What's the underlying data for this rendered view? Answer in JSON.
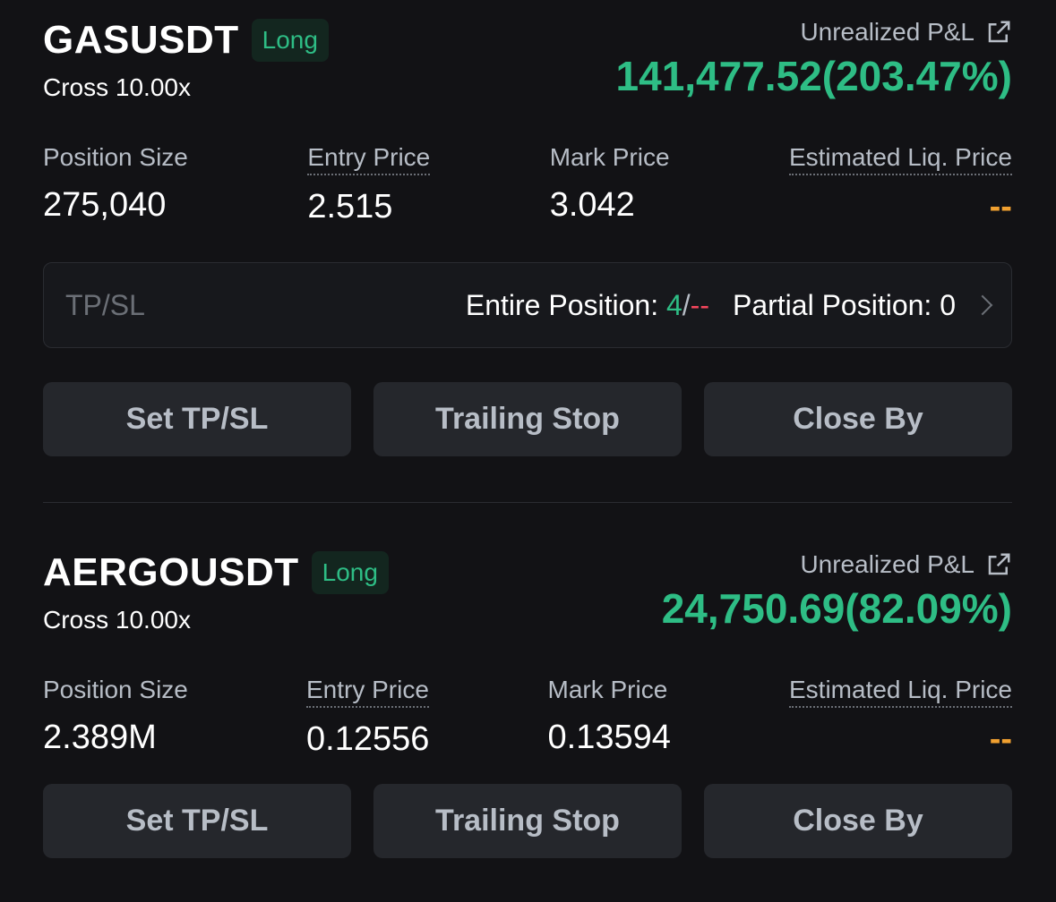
{
  "positions": [
    {
      "symbol": "GASUSDT",
      "side": "Long",
      "margin": "Cross 10.00x",
      "pnl_label": "Unrealized P&L",
      "pnl": "141,477.52(203.47%)",
      "stats": [
        {
          "label": "Position Size",
          "value": "275,040"
        },
        {
          "label": "Entry Price",
          "value": "2.515"
        },
        {
          "label": "Mark Price",
          "value": "3.042"
        },
        {
          "label": "Estimated Liq. Price",
          "value": "--"
        }
      ],
      "tpsl": {
        "label": "TP/SL",
        "entire_label": "Entire Position: ",
        "entire_tp": "4",
        "sep": "/",
        "entire_sl": "--",
        "partial": "Partial Position: 0"
      },
      "buttons": [
        "Set TP/SL",
        "Trailing Stop",
        "Close By"
      ]
    },
    {
      "symbol": "AERGOUSDT",
      "side": "Long",
      "margin": "Cross 10.00x",
      "pnl_label": "Unrealized P&L",
      "pnl": "24,750.69(82.09%)",
      "stats": [
        {
          "label": "Position Size",
          "value": "2.389M"
        },
        {
          "label": "Entry Price",
          "value": "0.12556"
        },
        {
          "label": "Mark Price",
          "value": "0.13594"
        },
        {
          "label": "Estimated Liq. Price",
          "value": "--"
        }
      ],
      "buttons": [
        "Set TP/SL",
        "Trailing Stop",
        "Close By"
      ]
    }
  ],
  "colors": {
    "green": "#2ebd85",
    "red": "#f6465d",
    "orange": "#f0a030",
    "background": "#121215"
  },
  "icons": {
    "share": "external-link-icon",
    "chevron": "chevron-right-icon"
  }
}
